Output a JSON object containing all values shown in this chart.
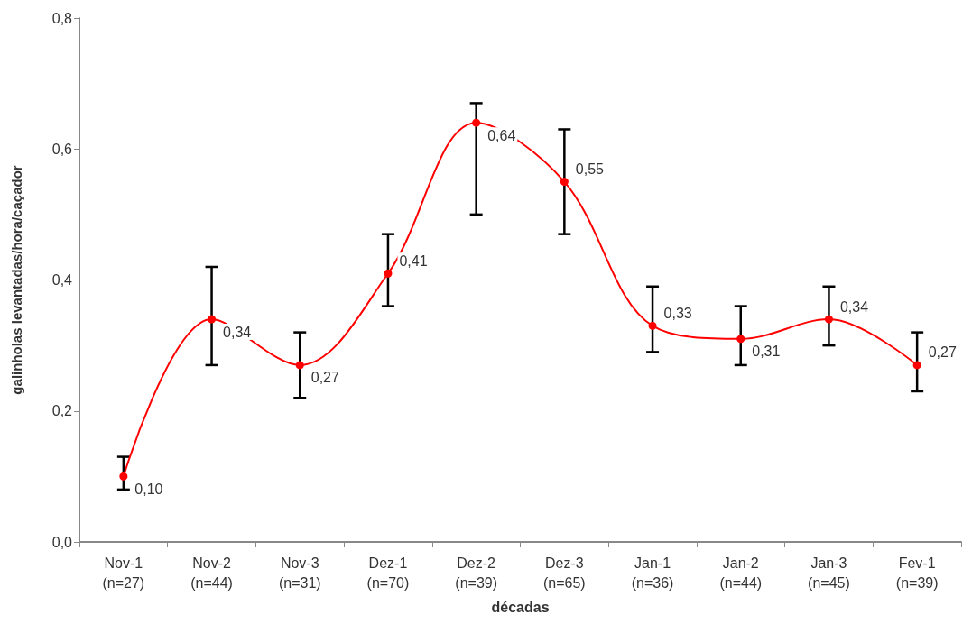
{
  "chart_data": {
    "type": "line",
    "xlabel": "décadas",
    "ylabel": "galinholas levantadas/hora/caçador",
    "categories": [
      "Nov-1\n(n=27)",
      "Nov-2\n(n=44)",
      "Nov-3\n(n=31)",
      "Dez-1\n(n=70)",
      "Dez-2\n(n=39)",
      "Dez-3\n(n=65)",
      "Jan-1\n(n=36)",
      "Jan-2\n(n=44)",
      "Jan-3\n(n=45)",
      "Fev-1\n(n=39)"
    ],
    "series": [
      {
        "color": "#ff0000",
        "values": [
          0.1,
          0.34,
          0.27,
          0.41,
          0.64,
          0.55,
          0.33,
          0.31,
          0.34,
          0.27
        ],
        "errors": [
          [
            0.08,
            0.13
          ],
          [
            0.27,
            0.42
          ],
          [
            0.22,
            0.32
          ],
          [
            0.36,
            0.47
          ],
          [
            0.5,
            0.67
          ],
          [
            0.47,
            0.63
          ],
          [
            0.29,
            0.39
          ],
          [
            0.27,
            0.36
          ],
          [
            0.3,
            0.39
          ],
          [
            0.23,
            0.32
          ]
        ],
        "value_labels": [
          "0,10",
          "0,34",
          "0,27",
          "0,41",
          "0,64",
          "0,55",
          "0,33",
          "0,31",
          "0,34",
          "0,27"
        ]
      }
    ],
    "ylim": [
      0,
      0.8
    ],
    "yticks": [
      {
        "value": 0,
        "label": "0,0"
      },
      {
        "value": 0.2,
        "label": "0,2"
      },
      {
        "value": 0.4,
        "label": "0,4"
      },
      {
        "value": 0.6,
        "label": "0,6"
      },
      {
        "value": 0.8,
        "label": "0,8"
      }
    ],
    "grid": false,
    "marker": "circle",
    "line_style": "solid"
  }
}
